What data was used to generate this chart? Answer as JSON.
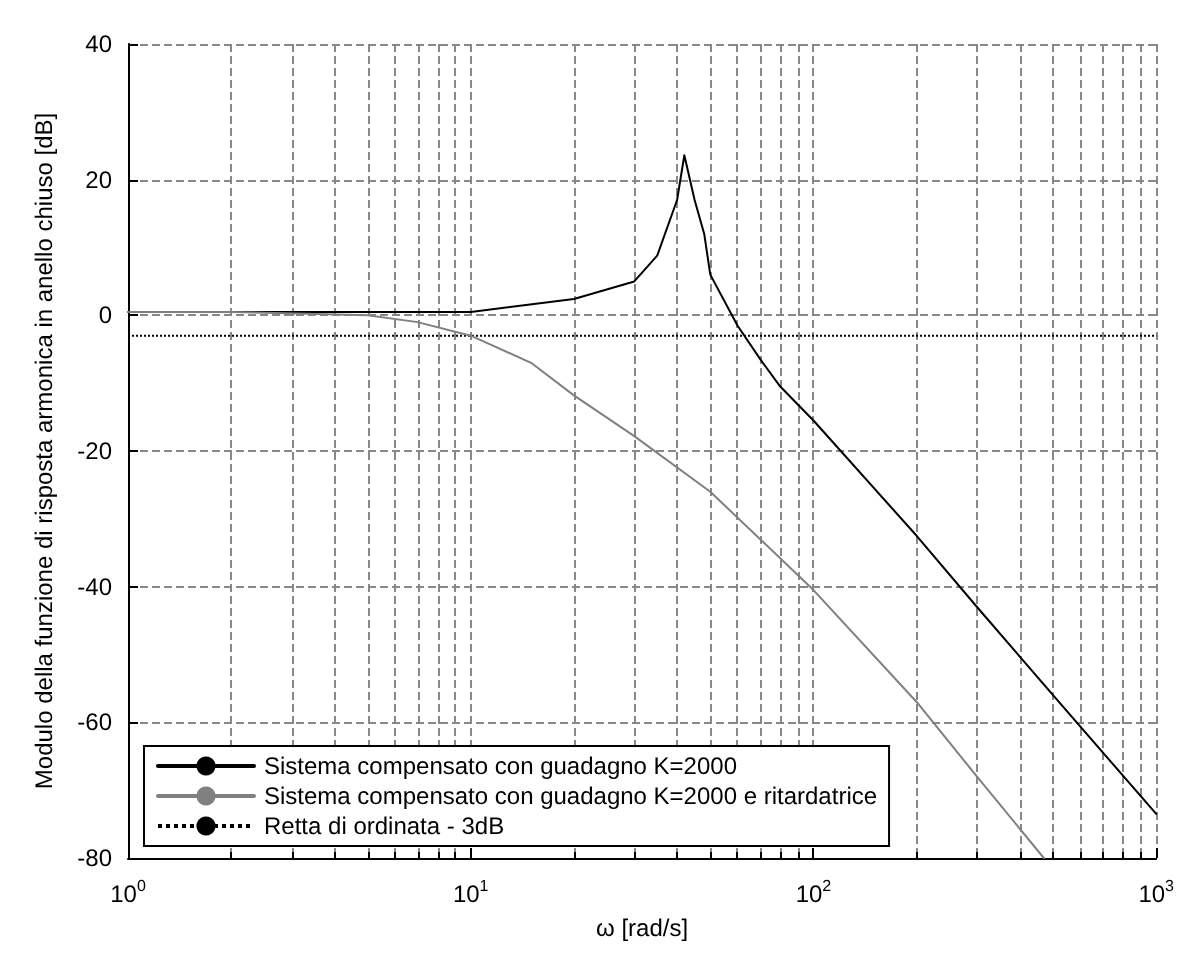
{
  "chart_data": {
    "type": "line",
    "xlabel": "ω [rad/s]",
    "ylabel": "Modulo della funzione di risposta armonica in anello chiuso [dB]",
    "log": "x",
    "grid": true,
    "legend": "bottom left",
    "line_style": "solid",
    "marker": "none",
    "xlim": [
      1,
      1000
    ],
    "xticks": [
      {
        "value": 1,
        "label": "10$^{0}$"
      },
      {
        "value": 10,
        "label": "10$^{1}$"
      },
      {
        "value": 100,
        "label": "10$^{2}$"
      },
      {
        "value": 1000,
        "label": "10$^{3}$"
      }
    ],
    "ylim": [
      -80,
      40
    ],
    "yticks": [
      -80,
      -60,
      -40,
      -20,
      0,
      20,
      40
    ],
    "series": [
      {
        "name": "Sistema compensato con guadagno K=2000",
        "color": "#000000",
        "x": [
          1,
          2,
          5,
          10,
          20,
          30,
          35,
          40,
          42,
          45,
          48,
          50,
          60,
          70,
          80,
          100,
          200,
          300,
          500,
          1000
        ],
        "values": [
          0.5,
          0.5,
          0.5,
          0.5,
          2.4,
          5,
          8.8,
          17,
          23.6,
          17,
          12,
          6,
          -1.5,
          -6.5,
          -10.5,
          -15.5,
          -32.5,
          -43,
          -56,
          -73.5
        ]
      },
      {
        "name": "Sistema compensato con guadagno K=2000 e ritardatrice",
        "color": "#808080",
        "x": [
          1,
          2,
          5,
          7,
          10,
          15,
          20,
          30,
          50,
          100,
          200,
          300,
          470
        ],
        "values": [
          0.5,
          0.5,
          0,
          -1,
          -3,
          -7,
          -11.8,
          -17.8,
          -26,
          -40.5,
          -57,
          -68,
          -80
        ]
      }
    ],
    "ref_lines": [
      {
        "axis": "y",
        "value": -3,
        "label": "Retta di ordinata - 3dB",
        "color": "#000000",
        "line_style": "dotted"
      }
    ]
  }
}
